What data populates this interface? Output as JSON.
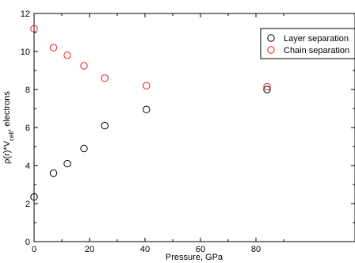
{
  "chart_data": {
    "type": "scatter",
    "xlabel": "Pressure, GPa",
    "ylabel": {
      "pre": "ρ(r)*V",
      "sub": "cell",
      "post": ", electrons"
    },
    "xlim": [
      0,
      90
    ],
    "ylim": [
      0,
      12
    ],
    "x_ticks": [
      0,
      20,
      40,
      60,
      80
    ],
    "y_ticks": [
      0,
      2,
      4,
      6,
      8,
      10,
      12
    ],
    "legend": {
      "position": "top-right",
      "entries": [
        "Layer separation",
        "Chain separation"
      ]
    },
    "series": [
      {
        "name": "Layer separation",
        "color": "#000000",
        "marker": "open-circle",
        "x": [
          0,
          7,
          12,
          18,
          25.5,
          40.5,
          84
        ],
        "y": [
          2.35,
          3.6,
          4.1,
          4.9,
          6.1,
          6.95,
          8.0
        ]
      },
      {
        "name": "Chain separation",
        "color": "#e31a1c",
        "marker": "open-circle",
        "x": [
          0,
          7,
          12,
          18,
          25.5,
          40.5,
          84
        ],
        "y": [
          11.2,
          10.2,
          9.8,
          9.25,
          8.6,
          8.2,
          8.15
        ]
      }
    ]
  }
}
